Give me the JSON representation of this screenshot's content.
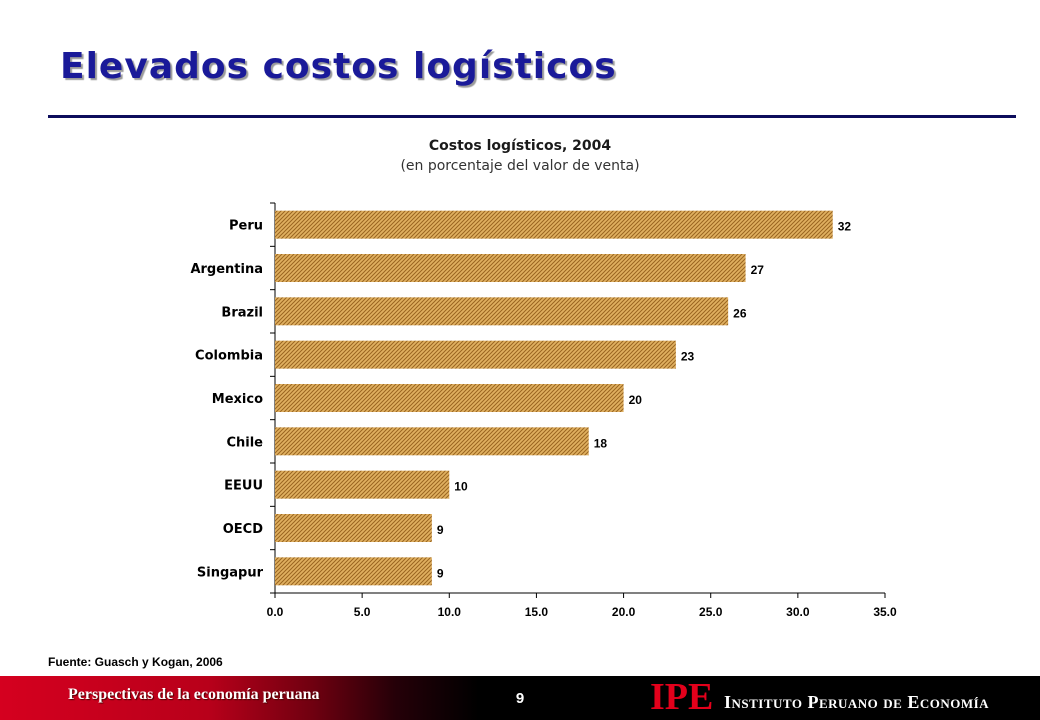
{
  "slide": {
    "title": "Elevados costos logísticos"
  },
  "chart_data": {
    "type": "bar",
    "orientation": "horizontal",
    "title": "Costos logísticos, 2004",
    "subtitle": "(en porcentaje del valor de venta)",
    "categories": [
      "Peru",
      "Argentina",
      "Brazil",
      "Colombia",
      "Mexico",
      "Chile",
      "EEUU",
      "OECD",
      "Singapur"
    ],
    "values": [
      32,
      27,
      26,
      23,
      20,
      18,
      10,
      9,
      9
    ],
    "data_labels": [
      "32",
      "27",
      "26",
      "23",
      "20",
      "18",
      "10",
      "9",
      "9"
    ],
    "x_ticks": [
      "0.0",
      "5.0",
      "10.0",
      "15.0",
      "20.0",
      "25.0",
      "30.0",
      "35.0"
    ],
    "xlim": [
      0,
      35
    ],
    "grid": false,
    "legend": "none",
    "bar_color": "#e0b060",
    "bar_hatch_color": "#9a6520"
  },
  "source": "Fuente: Guasch y Kogan, 2006",
  "footer": {
    "left_text": "Perspectivas de la economía peruana",
    "page_number": "9",
    "logo": "IPE",
    "org_name": "Instituto Peruano de Economía"
  }
}
